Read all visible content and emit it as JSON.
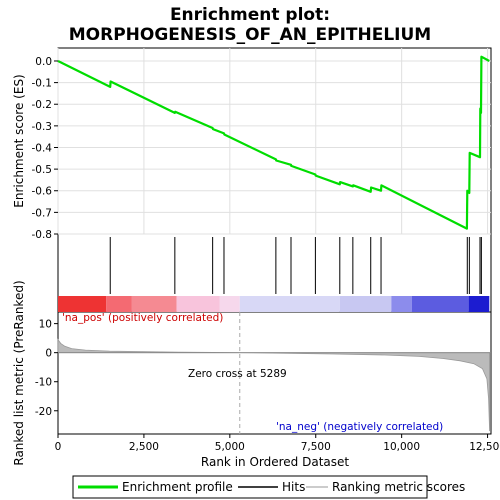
{
  "chart_data": {
    "type": "line",
    "title_line1": "Enrichment plot:",
    "title_line2": "MORPHOGENESIS_OF_AN_EPITHELIUM",
    "ylabel_top": "Enrichment score (ES)",
    "ylabel_bottom": "Ranked list metric (PreRanked)",
    "xlabel": "Rank in Ordered Dataset",
    "xlim": [
      0,
      12600
    ],
    "x_ticks": [
      0,
      2500,
      5000,
      7500,
      10000,
      12500
    ],
    "x_tick_labels": [
      "0",
      "2,500",
      "5,000",
      "7,500",
      "10,000",
      "12,500"
    ],
    "es_ylim": [
      -0.8,
      0.06
    ],
    "es_ticks": [
      0.0,
      -0.1,
      -0.2,
      -0.3,
      -0.4,
      -0.5,
      -0.6,
      -0.7,
      -0.8
    ],
    "es_tick_labels": [
      "0.0",
      "-0.1",
      "-0.2",
      "-0.3",
      "-0.4",
      "-0.5",
      "-0.6",
      "-0.7",
      "-0.8"
    ],
    "metric_ylim": [
      -28,
      14
    ],
    "metric_ticks": [
      10,
      0,
      -10,
      -20
    ],
    "metric_tick_labels": [
      "10",
      "0",
      "-10",
      "-20"
    ],
    "grid": true,
    "series": [
      {
        "name": "Enrichment profile",
        "color": "#00dd00",
        "x": [
          0,
          1520,
          1530,
          3400,
          3410,
          4500,
          4510,
          4830,
          4840,
          6340,
          6350,
          6780,
          6790,
          7490,
          7500,
          8200,
          8210,
          8580,
          8590,
          9100,
          9110,
          9400,
          9410,
          11900,
          11910,
          11970,
          11980,
          12280,
          12290,
          12310,
          12320,
          12550
        ],
        "y": [
          0.0,
          -0.12,
          -0.095,
          -0.24,
          -0.235,
          -0.31,
          -0.315,
          -0.335,
          -0.34,
          -0.455,
          -0.46,
          -0.48,
          -0.485,
          -0.525,
          -0.53,
          -0.57,
          -0.56,
          -0.58,
          -0.575,
          -0.605,
          -0.585,
          -0.6,
          -0.575,
          -0.775,
          -0.6,
          -0.61,
          -0.425,
          -0.445,
          -0.22,
          -0.24,
          0.02,
          0.0
        ]
      }
    ],
    "hits_x": [
      1520,
      3400,
      4500,
      4830,
      6340,
      6780,
      7490,
      8200,
      8580,
      9100,
      9400,
      11910,
      11970,
      12280,
      12320
    ],
    "zero_cross_x": 5289,
    "annotations": {
      "zero_cross": "Zero cross at 5289",
      "pos_label": "'na_pos' (positively correlated)",
      "neg_label": "'na_neg' (negatively correlated)"
    },
    "legend": [
      {
        "label": "Enrichment profile",
        "color": "#00dd00"
      },
      {
        "label": "Hits",
        "color": "#000000"
      },
      {
        "label": "Ranking metric scores",
        "color": "#bbbbbb"
      }
    ],
    "colors": {
      "pos_annot": "#cc0000",
      "neg_annot": "#0000cc",
      "metric_fill": "#bbbbbb",
      "zero_line": "#aaaaaa"
    }
  }
}
